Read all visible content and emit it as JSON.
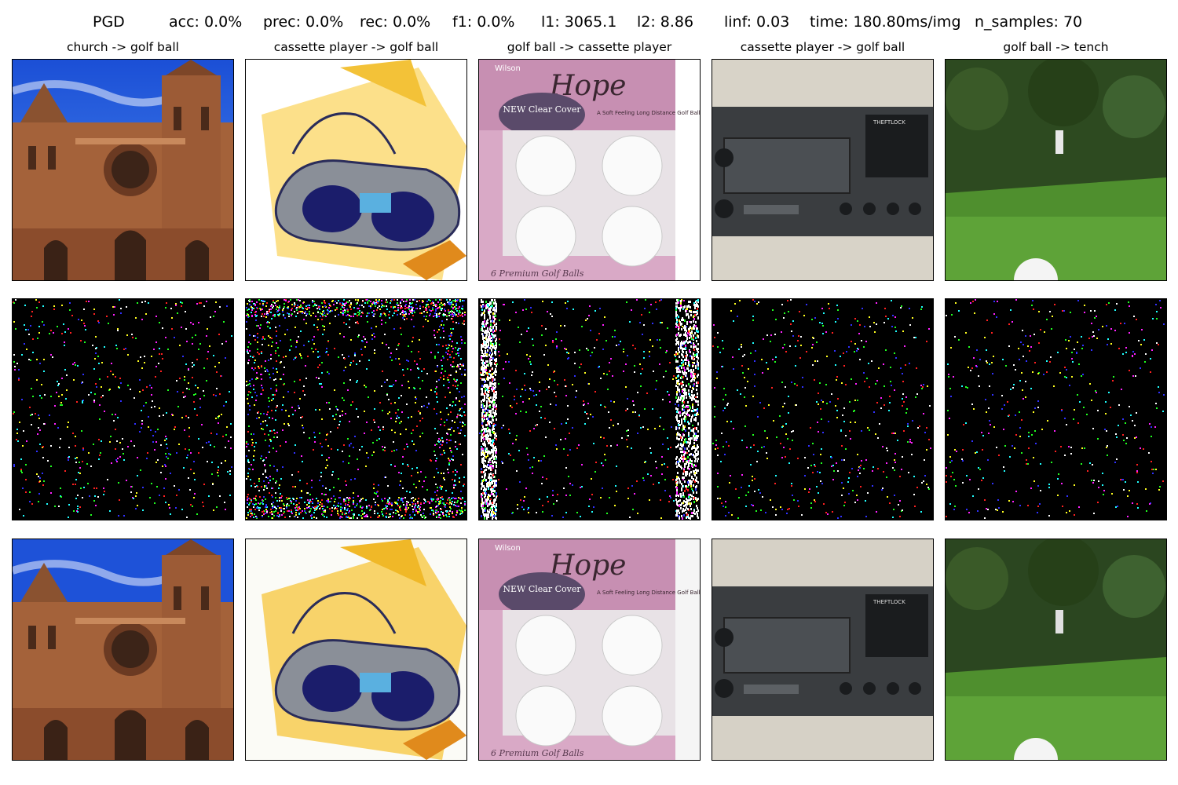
{
  "header": {
    "method": "PGD",
    "acc": "acc: 0.0%",
    "prec": "prec: 0.0%",
    "rec": "rec: 0.0%",
    "f1": "f1: 0.0%",
    "l1": "l1: 3065.1",
    "l2": "l2: 8.86",
    "linf": "linf: 0.03",
    "time": "time: 180.80ms/img",
    "n_samples": "n_samples: 70"
  },
  "columns": [
    {
      "title": "church -> golf ball",
      "subject": "church"
    },
    {
      "title": "cassette player -> golf ball",
      "subject": "boombox"
    },
    {
      "title": "golf ball -> cassette player",
      "subject": "golf-ball-box"
    },
    {
      "title": "cassette player -> golf ball",
      "subject": "car-stereo"
    },
    {
      "title": "golf ball -> tench",
      "subject": "golf-course"
    }
  ],
  "image_text": {
    "golf_box_brand": "Wilson",
    "golf_box_script": "Hope",
    "golf_box_badge": "NEW Clear Cover",
    "golf_box_tag": "A Soft Feeling Long Distance Golf Ball",
    "golf_box_bottom": "6 Premium Golf Balls",
    "stereo_label": "THEFTLOCK"
  },
  "noise_colors": [
    "#ff2020",
    "#20ff20",
    "#3030ff",
    "#ffffff",
    "#ff20ff",
    "#20ffff",
    "#ffff20"
  ]
}
